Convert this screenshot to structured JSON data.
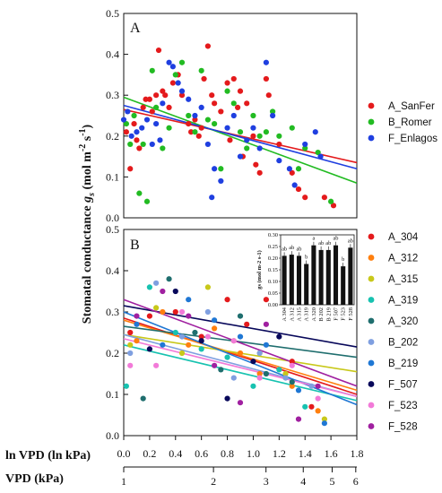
{
  "chart_data": [
    {
      "panel": "A",
      "type": "scatter",
      "xlim": [
        0,
        1.8
      ],
      "ylim": [
        0,
        0.5
      ],
      "yticks": [
        "0.0",
        "0.1",
        "0.2",
        "0.3",
        "0.4",
        "0.5"
      ],
      "legend_placement": "right",
      "series": [
        {
          "name": "A_SanFer",
          "color": "#e41a1c",
          "trend": [
            [
              0,
              0.265
            ],
            [
              1.8,
              0.135
            ]
          ],
          "points": [
            [
              0.02,
              0.21
            ],
            [
              0.05,
              0.12
            ],
            [
              0.08,
              0.23
            ],
            [
              0.1,
              0.19
            ],
            [
              0.12,
              0.17
            ],
            [
              0.15,
              0.27
            ],
            [
              0.17,
              0.29
            ],
            [
              0.2,
              0.29
            ],
            [
              0.22,
              0.26
            ],
            [
              0.25,
              0.3
            ],
            [
              0.27,
              0.41
            ],
            [
              0.3,
              0.31
            ],
            [
              0.32,
              0.3
            ],
            [
              0.35,
              0.27
            ],
            [
              0.38,
              0.33
            ],
            [
              0.42,
              0.35
            ],
            [
              0.45,
              0.3
            ],
            [
              0.5,
              0.23
            ],
            [
              0.52,
              0.21
            ],
            [
              0.55,
              0.24
            ],
            [
              0.58,
              0.2
            ],
            [
              0.6,
              0.22
            ],
            [
              0.62,
              0.34
            ],
            [
              0.65,
              0.42
            ],
            [
              0.68,
              0.3
            ],
            [
              0.7,
              0.28
            ],
            [
              0.75,
              0.26
            ],
            [
              0.8,
              0.33
            ],
            [
              0.82,
              0.19
            ],
            [
              0.85,
              0.34
            ],
            [
              0.88,
              0.27
            ],
            [
              0.9,
              0.31
            ],
            [
              0.92,
              0.15
            ],
            [
              0.95,
              0.28
            ],
            [
              1.0,
              0.2
            ],
            [
              1.02,
              0.13
            ],
            [
              1.05,
              0.11
            ],
            [
              1.1,
              0.34
            ],
            [
              1.12,
              0.3
            ],
            [
              1.2,
              0.18
            ],
            [
              1.3,
              0.11
            ],
            [
              1.35,
              0.07
            ],
            [
              1.4,
              0.05
            ],
            [
              1.55,
              0.05
            ],
            [
              1.62,
              0.03
            ]
          ]
        },
        {
          "name": "B_Romer",
          "color": "#22bb22",
          "trend": [
            [
              0,
              0.295
            ],
            [
              1.8,
              0.085
            ]
          ],
          "points": [
            [
              0.02,
              0.23
            ],
            [
              0.05,
              0.18
            ],
            [
              0.08,
              0.25
            ],
            [
              0.12,
              0.06
            ],
            [
              0.15,
              0.18
            ],
            [
              0.18,
              0.04
            ],
            [
              0.22,
              0.36
            ],
            [
              0.25,
              0.27
            ],
            [
              0.3,
              0.17
            ],
            [
              0.35,
              0.22
            ],
            [
              0.4,
              0.35
            ],
            [
              0.45,
              0.38
            ],
            [
              0.5,
              0.25
            ],
            [
              0.55,
              0.21
            ],
            [
              0.6,
              0.36
            ],
            [
              0.65,
              0.24
            ],
            [
              0.7,
              0.23
            ],
            [
              0.75,
              0.12
            ],
            [
              0.8,
              0.31
            ],
            [
              0.85,
              0.28
            ],
            [
              0.9,
              0.21
            ],
            [
              0.95,
              0.17
            ],
            [
              1.0,
              0.25
            ],
            [
              1.05,
              0.2
            ],
            [
              1.1,
              0.21
            ],
            [
              1.15,
              0.26
            ],
            [
              1.2,
              0.2
            ],
            [
              1.3,
              0.22
            ],
            [
              1.35,
              0.12
            ],
            [
              1.4,
              0.17
            ],
            [
              1.5,
              0.16
            ],
            [
              1.6,
              0.04
            ]
          ]
        },
        {
          "name": "F_Enlagos",
          "color": "#1f3fe0",
          "trend": [
            [
              0,
              0.275
            ],
            [
              1.8,
              0.12
            ]
          ],
          "points": [
            [
              0.0,
              0.24
            ],
            [
              0.03,
              0.26
            ],
            [
              0.06,
              0.2
            ],
            [
              0.1,
              0.21
            ],
            [
              0.14,
              0.22
            ],
            [
              0.18,
              0.24
            ],
            [
              0.22,
              0.18
            ],
            [
              0.25,
              0.23
            ],
            [
              0.28,
              0.19
            ],
            [
              0.3,
              0.28
            ],
            [
              0.35,
              0.38
            ],
            [
              0.38,
              0.37
            ],
            [
              0.42,
              0.33
            ],
            [
              0.45,
              0.31
            ],
            [
              0.5,
              0.29
            ],
            [
              0.55,
              0.25
            ],
            [
              0.6,
              0.27
            ],
            [
              0.65,
              0.18
            ],
            [
              0.68,
              0.05
            ],
            [
              0.7,
              0.12
            ],
            [
              0.75,
              0.09
            ],
            [
              0.8,
              0.22
            ],
            [
              0.85,
              0.25
            ],
            [
              0.9,
              0.15
            ],
            [
              0.95,
              0.19
            ],
            [
              1.0,
              0.22
            ],
            [
              1.05,
              0.17
            ],
            [
              1.1,
              0.38
            ],
            [
              1.15,
              0.25
            ],
            [
              1.2,
              0.14
            ],
            [
              1.28,
              0.12
            ],
            [
              1.32,
              0.08
            ],
            [
              1.4,
              0.18
            ],
            [
              1.48,
              0.21
            ],
            [
              1.52,
              0.15
            ]
          ]
        }
      ]
    },
    {
      "panel": "B",
      "type": "scatter",
      "xlim": [
        0,
        1.8
      ],
      "ylim": [
        0,
        0.5
      ],
      "yticks": [
        "0.0",
        "0.1",
        "0.2",
        "0.3",
        "0.4",
        "0.5"
      ],
      "legend_placement": "right",
      "series": [
        {
          "name": "A_304",
          "color": "#e41a1c",
          "trend": [
            [
              0,
              0.285
            ],
            [
              1.8,
              0.1
            ]
          ],
          "points": [
            [
              0.05,
              0.25
            ],
            [
              0.2,
              0.29
            ],
            [
              0.4,
              0.3
            ],
            [
              0.6,
              0.24
            ],
            [
              0.8,
              0.33
            ],
            [
              0.95,
              0.27
            ],
            [
              1.1,
              0.33
            ],
            [
              1.3,
              0.18
            ],
            [
              1.45,
              0.07
            ]
          ]
        },
        {
          "name": "A_312",
          "color": "#ff7f0e",
          "trend": [
            [
              0,
              0.28
            ],
            [
              1.8,
              0.11
            ]
          ],
          "points": [
            [
              0.1,
              0.23
            ],
            [
              0.3,
              0.3
            ],
            [
              0.5,
              0.22
            ],
            [
              0.7,
              0.26
            ],
            [
              0.9,
              0.2
            ],
            [
              1.05,
              0.15
            ],
            [
              1.3,
              0.12
            ],
            [
              1.5,
              0.06
            ]
          ]
        },
        {
          "name": "A_315",
          "color": "#c8c81a",
          "trend": [
            [
              0,
              0.245
            ],
            [
              1.8,
              0.155
            ]
          ],
          "points": [
            [
              0.05,
              0.22
            ],
            [
              0.25,
              0.31
            ],
            [
              0.45,
              0.2
            ],
            [
              0.65,
              0.36
            ],
            [
              0.85,
              0.23
            ],
            [
              1.05,
              0.2
            ],
            [
              1.25,
              0.15
            ],
            [
              1.55,
              0.04
            ]
          ]
        },
        {
          "name": "A_319",
          "color": "#17c2b0",
          "trend": [
            [
              0,
              0.22
            ],
            [
              1.8,
              0.085
            ]
          ],
          "points": [
            [
              0.02,
              0.12
            ],
            [
              0.2,
              0.36
            ],
            [
              0.4,
              0.25
            ],
            [
              0.6,
              0.21
            ],
            [
              0.8,
              0.19
            ],
            [
              1.0,
              0.12
            ],
            [
              1.2,
              0.16
            ],
            [
              1.4,
              0.07
            ]
          ]
        },
        {
          "name": "A_320",
          "color": "#1f6e6e",
          "trend": [
            [
              0,
              0.265
            ],
            [
              1.8,
              0.19
            ]
          ],
          "points": [
            [
              0.15,
              0.09
            ],
            [
              0.35,
              0.38
            ],
            [
              0.55,
              0.25
            ],
            [
              0.75,
              0.16
            ],
            [
              0.9,
              0.29
            ],
            [
              1.1,
              0.15
            ],
            [
              1.3,
              0.13
            ]
          ]
        },
        {
          "name": "B_202",
          "color": "#7f9fe0",
          "trend": [
            [
              0,
              0.245
            ],
            [
              1.8,
              0.095
            ]
          ],
          "points": [
            [
              0.05,
              0.2
            ],
            [
              0.25,
              0.37
            ],
            [
              0.45,
              0.24
            ],
            [
              0.65,
              0.3
            ],
            [
              0.85,
              0.14
            ],
            [
              1.05,
              0.2
            ],
            [
              1.25,
              0.14
            ],
            [
              1.45,
              0.12
            ]
          ]
        },
        {
          "name": "B_219",
          "color": "#1f77d4",
          "trend": [
            [
              0,
              0.3
            ],
            [
              1.8,
              0.075
            ]
          ],
          "points": [
            [
              0.1,
              0.27
            ],
            [
              0.3,
              0.22
            ],
            [
              0.5,
              0.33
            ],
            [
              0.7,
              0.28
            ],
            [
              0.9,
              0.24
            ],
            [
              1.1,
              0.22
            ],
            [
              1.35,
              0.11
            ],
            [
              1.55,
              0.03
            ]
          ]
        },
        {
          "name": "F_507",
          "color": "#08085a",
          "trend": [
            [
              0,
              0.315
            ],
            [
              1.8,
              0.215
            ]
          ],
          "points": [
            [
              0.2,
              0.21
            ],
            [
              0.4,
              0.35
            ],
            [
              0.6,
              0.23
            ],
            [
              0.8,
              0.09
            ],
            [
              1.0,
              0.18
            ],
            [
              1.2,
              0.24
            ]
          ]
        },
        {
          "name": "F_523",
          "color": "#f27ad8",
          "trend": [
            [
              0,
              0.235
            ],
            [
              1.8,
              0.095
            ]
          ],
          "points": [
            [
              0.05,
              0.17
            ],
            [
              0.25,
              0.17
            ],
            [
              0.45,
              0.3
            ],
            [
              0.65,
              0.24
            ],
            [
              0.85,
              0.23
            ],
            [
              1.05,
              0.14
            ],
            [
              1.3,
              0.17
            ],
            [
              1.5,
              0.09
            ]
          ]
        },
        {
          "name": "F_528",
          "color": "#a020a0",
          "trend": [
            [
              0,
              0.33
            ],
            [
              1.8,
              0.12
            ]
          ],
          "points": [
            [
              0.1,
              0.29
            ],
            [
              0.3,
              0.35
            ],
            [
              0.5,
              0.29
            ],
            [
              0.7,
              0.17
            ],
            [
              0.9,
              0.08
            ],
            [
              1.1,
              0.27
            ],
            [
              1.35,
              0.04
            ],
            [
              1.5,
              0.12
            ]
          ]
        }
      ]
    }
  ],
  "inset": {
    "type": "bar",
    "ylabel": "gs (mol m-2 s-1)",
    "ylim": [
      0,
      0.3
    ],
    "yticks": [
      "0.00",
      "0.05",
      "0.10",
      "0.15",
      "0.20",
      "0.25",
      "0.30"
    ],
    "categories": [
      "A_304",
      "A_312",
      "A_315",
      "A_319",
      "A_320",
      "B_202",
      "B_219",
      "F_507",
      "F_523",
      "F_528"
    ],
    "values": [
      0.21,
      0.215,
      0.21,
      0.175,
      0.255,
      0.235,
      0.235,
      0.255,
      0.165,
      0.245
    ],
    "letters": [
      "ab",
      "ab",
      "ab",
      "b",
      "a",
      "ab",
      "ab",
      "ab",
      "b",
      "ab"
    ]
  },
  "axes": {
    "ylabel_main": "Stomatal conductance ",
    "ylabel_gs": "g",
    "ylabel_sub": "s",
    "ylabel_tail": " (mol m",
    "ylabel_exp1": "-2",
    "ylabel_mid": " s",
    "ylabel_exp2": "-1",
    "ylabel_end": ")",
    "x1_label": "ln VPD (ln kPa)",
    "x1_ticks": [
      "0.0",
      "0.2",
      "0.4",
      "0.6",
      "0.8",
      "1.0",
      "1.2",
      "1.4",
      "1.6",
      "1.8"
    ],
    "x2_label": "VPD (kPa)",
    "x2_ticks": [
      "1",
      "2",
      "3",
      "4",
      "5",
      "6"
    ],
    "panel_a": "A",
    "panel_b": "B"
  }
}
